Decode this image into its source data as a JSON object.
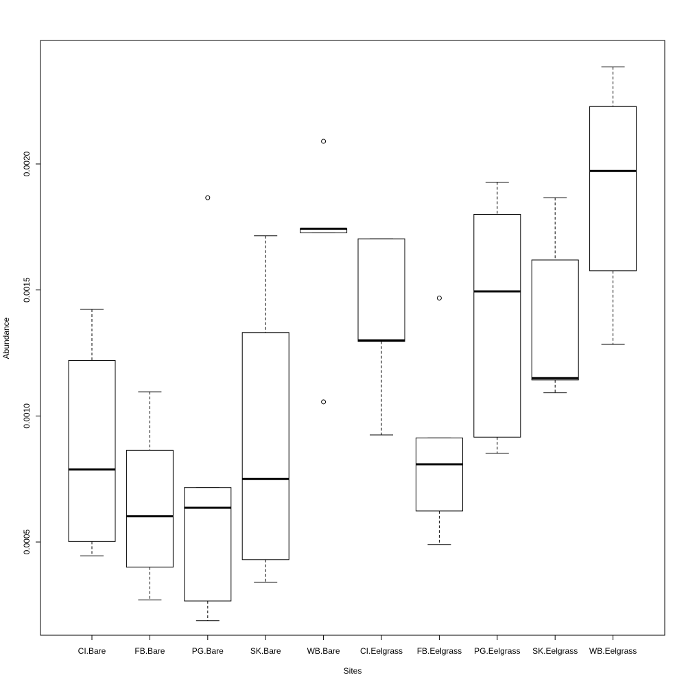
{
  "chart_data": {
    "type": "boxplot",
    "title": "",
    "xlabel": "Sites",
    "ylabel": "Abundance",
    "ylim": [
      0.00013,
      0.00249
    ],
    "yticks": [
      0.0005,
      0.001,
      0.0015,
      0.002
    ],
    "ytick_labels": [
      "0.0005",
      "0.0010",
      "0.0015",
      "0.0020"
    ],
    "grid": false,
    "legend": "none",
    "colors": {
      "stroke": "#000000",
      "fill": "#ffffff",
      "background": "#ffffff"
    },
    "categories": [
      "CI.Bare",
      "FB.Bare",
      "PG.Bare",
      "SK.Bare",
      "WB.Bare",
      "CI.Eelgrass",
      "FB.Eelgrass",
      "PG.Eelgrass",
      "SK.Eelgrass",
      "WB.Eelgrass"
    ],
    "boxes": [
      {
        "label": "CI.Bare",
        "whisker_low": 0.000445,
        "q1": 0.000502,
        "median": 0.000788,
        "q3": 0.00122,
        "whisker_high": 0.001423,
        "outliers": []
      },
      {
        "label": "FB.Bare",
        "whisker_low": 0.00027,
        "q1": 0.0004,
        "median": 0.000602,
        "q3": 0.000864,
        "whisker_high": 0.001096,
        "outliers": []
      },
      {
        "label": "PG.Bare",
        "whisker_low": 0.000188,
        "q1": 0.000266,
        "median": 0.000636,
        "q3": 0.000716,
        "whisker_high": 0.000716,
        "outliers": [
          0.001866
        ]
      },
      {
        "label": "SK.Bare",
        "whisker_low": 0.00034,
        "q1": 0.00043,
        "median": 0.00075,
        "q3": 0.001331,
        "whisker_high": 0.001715,
        "outliers": []
      },
      {
        "label": "WB.Bare",
        "whisker_low": 0.001727,
        "q1": 0.001727,
        "median": 0.001743,
        "q3": 0.001743,
        "whisker_high": 0.001743,
        "outliers": [
          0.00209,
          0.001056
        ]
      },
      {
        "label": "CI.Eelgrass",
        "whisker_low": 0.000925,
        "q1": 0.001296,
        "median": 0.0013,
        "q3": 0.001703,
        "whisker_high": 0.001703,
        "outliers": []
      },
      {
        "label": "FB.Eelgrass",
        "whisker_low": 0.00049,
        "q1": 0.000623,
        "median": 0.000808,
        "q3": 0.000913,
        "whisker_high": 0.000913,
        "outliers": [
          0.001468
        ]
      },
      {
        "label": "PG.Eelgrass",
        "whisker_low": 0.000852,
        "q1": 0.000916,
        "median": 0.001494,
        "q3": 0.0018,
        "whisker_high": 0.001928,
        "outliers": []
      },
      {
        "label": "SK.Eelgrass",
        "whisker_low": 0.001092,
        "q1": 0.001143,
        "median": 0.00115,
        "q3": 0.001619,
        "whisker_high": 0.001866,
        "outliers": []
      },
      {
        "label": "WB.Eelgrass",
        "whisker_low": 0.001284,
        "q1": 0.001576,
        "median": 0.001972,
        "q3": 0.002228,
        "whisker_high": 0.002385,
        "outliers": []
      }
    ]
  }
}
